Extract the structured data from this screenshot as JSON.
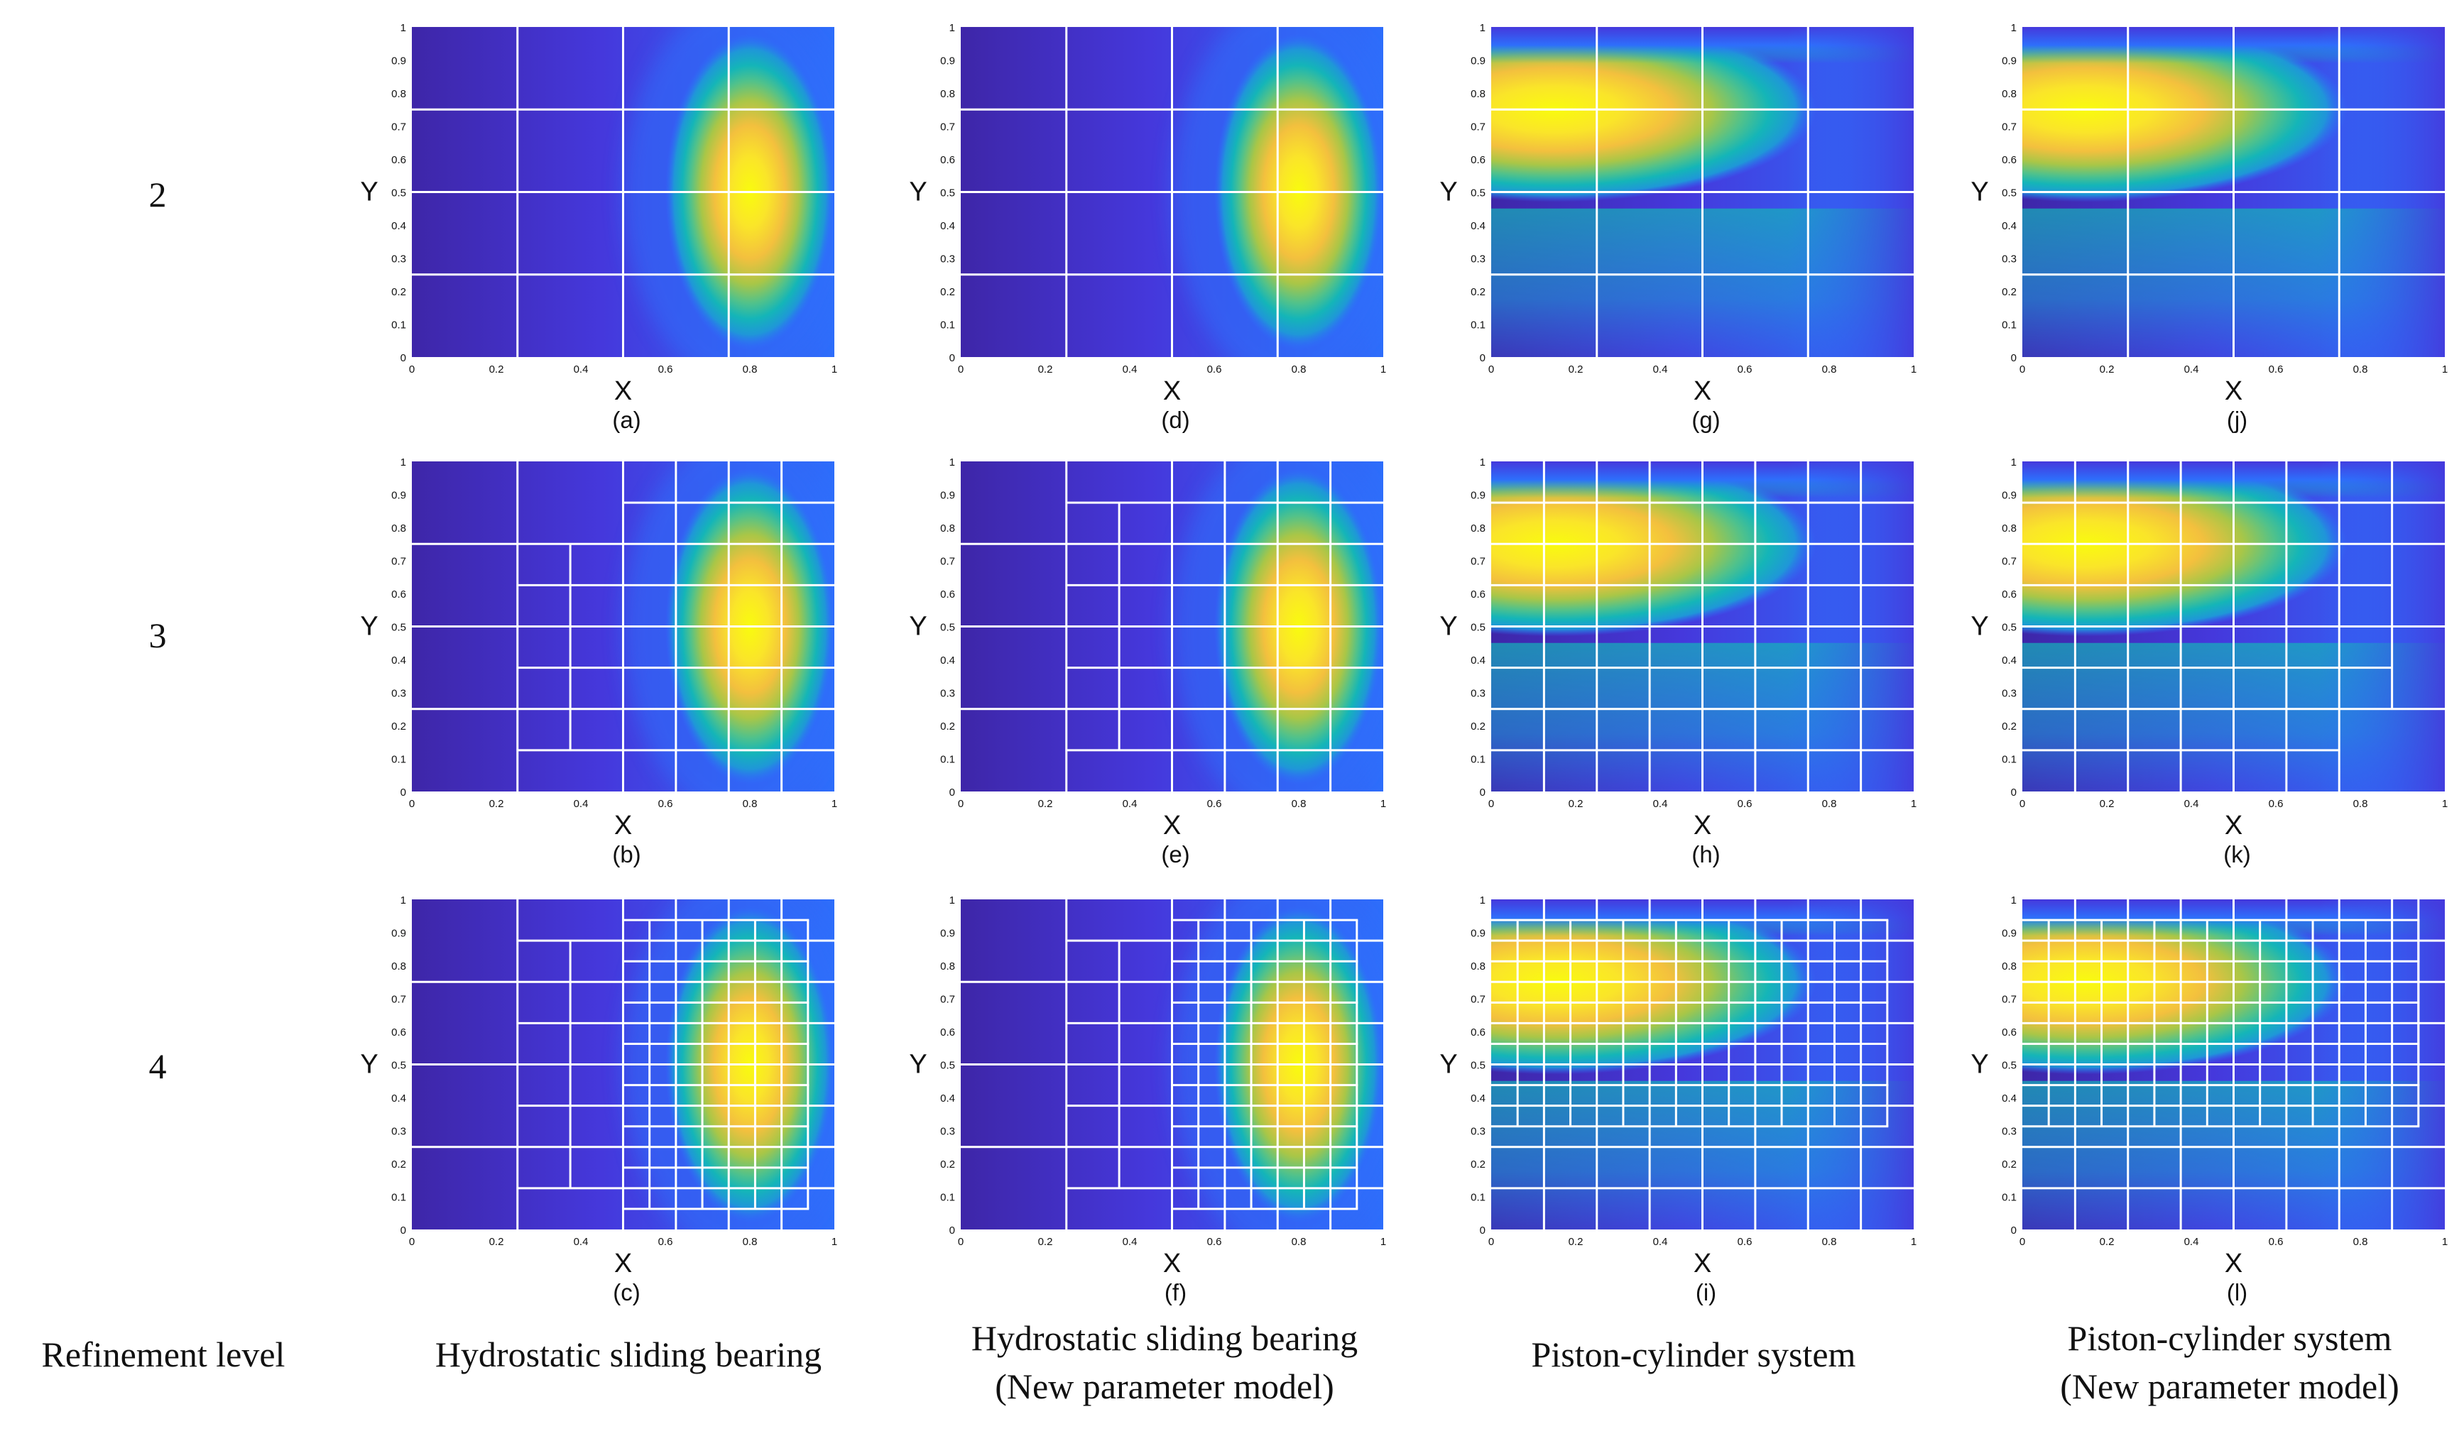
{
  "figure": {
    "row_header_title": "Refinement level",
    "rows": [
      {
        "level": "2"
      },
      {
        "level": "3"
      },
      {
        "level": "4"
      }
    ],
    "columns": [
      {
        "title_lines": [
          "Hydrostatic sliding bearing"
        ],
        "field": "bearing"
      },
      {
        "title_lines": [
          "Hydrostatic sliding bearing",
          "(New  parameter model)"
        ],
        "field": "bearing"
      },
      {
        "title_lines": [
          "Piston-cylinder system"
        ],
        "field": "piston"
      },
      {
        "title_lines": [
          "Piston-cylinder system",
          "(New parameter model)"
        ],
        "field": "piston"
      }
    ]
  },
  "chart_data": [
    {
      "panel": "(a)",
      "type": "heatmap",
      "field": "bearing",
      "refinement_level": 2,
      "mesh": "level2_bearing",
      "xlabel": "X",
      "ylabel": "Y",
      "xlim": [
        0,
        1
      ],
      "ylim": [
        0,
        1
      ],
      "xticks": [
        "0",
        "0.2",
        "0.4",
        "0.6",
        "0.8",
        "1"
      ],
      "yticks": [
        "0",
        "0.1",
        "0.2",
        "0.3",
        "0.4",
        "0.5",
        "0.6",
        "0.7",
        "0.8",
        "0.9",
        "1"
      ]
    },
    {
      "panel": "(b)",
      "type": "heatmap",
      "field": "bearing",
      "refinement_level": 3,
      "mesh": "level3_bearing",
      "xlabel": "X",
      "ylabel": "Y",
      "xlim": [
        0,
        1
      ],
      "ylim": [
        0,
        1
      ],
      "xticks": [
        "0",
        "0.2",
        "0.4",
        "0.6",
        "0.8",
        "1"
      ],
      "yticks": [
        "0",
        "0.1",
        "0.2",
        "0.3",
        "0.4",
        "0.5",
        "0.6",
        "0.7",
        "0.8",
        "0.9",
        "1"
      ]
    },
    {
      "panel": "(c)",
      "type": "heatmap",
      "field": "bearing",
      "refinement_level": 4,
      "mesh": "level4_bearing",
      "xlabel": "X",
      "ylabel": "Y",
      "xlim": [
        0,
        1
      ],
      "ylim": [
        0,
        1
      ],
      "xticks": [
        "0",
        "0.2",
        "0.4",
        "0.6",
        "0.8",
        "1"
      ],
      "yticks": [
        "0",
        "0.1",
        "0.2",
        "0.3",
        "0.4",
        "0.5",
        "0.6",
        "0.7",
        "0.8",
        "0.9",
        "1"
      ]
    },
    {
      "panel": "(d)",
      "type": "heatmap",
      "field": "bearing",
      "refinement_level": 2,
      "mesh": "level2_bearing",
      "xlabel": "X",
      "ylabel": "Y",
      "xlim": [
        0,
        1
      ],
      "ylim": [
        0,
        1
      ],
      "xticks": [
        "0",
        "0.2",
        "0.4",
        "0.6",
        "0.8",
        "1"
      ],
      "yticks": [
        "0",
        "0.1",
        "0.2",
        "0.3",
        "0.4",
        "0.5",
        "0.6",
        "0.7",
        "0.8",
        "0.9",
        "1"
      ]
    },
    {
      "panel": "(e)",
      "type": "heatmap",
      "field": "bearing",
      "refinement_level": 3,
      "mesh": "level3_bearing_new",
      "xlabel": "X",
      "ylabel": "Y",
      "xlim": [
        0,
        1
      ],
      "ylim": [
        0,
        1
      ],
      "xticks": [
        "0",
        "0.2",
        "0.4",
        "0.6",
        "0.8",
        "1"
      ],
      "yticks": [
        "0",
        "0.1",
        "0.2",
        "0.3",
        "0.4",
        "0.5",
        "0.6",
        "0.7",
        "0.8",
        "0.9",
        "1"
      ]
    },
    {
      "panel": "(f)",
      "type": "heatmap",
      "field": "bearing",
      "refinement_level": 4,
      "mesh": "level4_bearing_new",
      "xlabel": "X",
      "ylabel": "Y",
      "xlim": [
        0,
        1
      ],
      "ylim": [
        0,
        1
      ],
      "xticks": [
        "0",
        "0.2",
        "0.4",
        "0.6",
        "0.8",
        "1"
      ],
      "yticks": [
        "0",
        "0.1",
        "0.2",
        "0.3",
        "0.4",
        "0.5",
        "0.6",
        "0.7",
        "0.8",
        "0.9",
        "1"
      ]
    },
    {
      "panel": "(g)",
      "type": "heatmap",
      "field": "piston",
      "refinement_level": 2,
      "mesh": "level2_piston",
      "xlabel": "X",
      "ylabel": "Y",
      "xlim": [
        0,
        1
      ],
      "ylim": [
        0,
        1
      ],
      "xticks": [
        "0",
        "0.2",
        "0.4",
        "0.6",
        "0.8",
        "1"
      ],
      "yticks": [
        "0",
        "0.1",
        "0.2",
        "0.3",
        "0.4",
        "0.5",
        "0.6",
        "0.7",
        "0.8",
        "0.9",
        "1"
      ]
    },
    {
      "panel": "(h)",
      "type": "heatmap",
      "field": "piston",
      "refinement_level": 3,
      "mesh": "level3_piston",
      "xlabel": "X",
      "ylabel": "Y",
      "xlim": [
        0,
        1
      ],
      "ylim": [
        0,
        1
      ],
      "xticks": [
        "0",
        "0.2",
        "0.4",
        "0.6",
        "0.8",
        "1"
      ],
      "yticks": [
        "0",
        "0.1",
        "0.2",
        "0.3",
        "0.4",
        "0.5",
        "0.6",
        "0.7",
        "0.8",
        "0.9",
        "1"
      ]
    },
    {
      "panel": "(i)",
      "type": "heatmap",
      "field": "piston",
      "refinement_level": 4,
      "mesh": "level4_piston",
      "xlabel": "X",
      "ylabel": "Y",
      "xlim": [
        0,
        1
      ],
      "ylim": [
        0,
        1
      ],
      "xticks": [
        "0",
        "0.2",
        "0.4",
        "0.6",
        "0.8",
        "1"
      ],
      "yticks": [
        "0",
        "0.1",
        "0.2",
        "0.3",
        "0.4",
        "0.5",
        "0.6",
        "0.7",
        "0.8",
        "0.9",
        "1"
      ]
    },
    {
      "panel": "(j)",
      "type": "heatmap",
      "field": "piston",
      "refinement_level": 2,
      "mesh": "level2_piston",
      "xlabel": "X",
      "ylabel": "Y",
      "xlim": [
        0,
        1
      ],
      "ylim": [
        0,
        1
      ],
      "xticks": [
        "0",
        "0.2",
        "0.4",
        "0.6",
        "0.8",
        "1"
      ],
      "yticks": [
        "0",
        "0.1",
        "0.2",
        "0.3",
        "0.4",
        "0.5",
        "0.6",
        "0.7",
        "0.8",
        "0.9",
        "1"
      ]
    },
    {
      "panel": "(k)",
      "type": "heatmap",
      "field": "piston",
      "refinement_level": 3,
      "mesh": "level3_piston_new",
      "xlabel": "X",
      "ylabel": "Y",
      "xlim": [
        0,
        1
      ],
      "ylim": [
        0,
        1
      ],
      "xticks": [
        "0",
        "0.2",
        "0.4",
        "0.6",
        "0.8",
        "1"
      ],
      "yticks": [
        "0",
        "0.1",
        "0.2",
        "0.3",
        "0.4",
        "0.5",
        "0.6",
        "0.7",
        "0.8",
        "0.9",
        "1"
      ]
    },
    {
      "panel": "(l)",
      "type": "heatmap",
      "field": "piston",
      "refinement_level": 4,
      "mesh": "level4_piston_new",
      "xlabel": "X",
      "ylabel": "Y",
      "xlim": [
        0,
        1
      ],
      "ylim": [
        0,
        1
      ],
      "xticks": [
        "0",
        "0.2",
        "0.4",
        "0.6",
        "0.8",
        "1"
      ],
      "yticks": [
        "0",
        "0.1",
        "0.2",
        "0.3",
        "0.4",
        "0.5",
        "0.6",
        "0.7",
        "0.8",
        "0.9",
        "1"
      ]
    }
  ],
  "colormap": [
    "#3e26a8",
    "#4538dc",
    "#2e6efb",
    "#1f97d8",
    "#14b5b8",
    "#52c28a",
    "#a9c647",
    "#f3c03e",
    "#fae529",
    "#f9fb0e"
  ]
}
